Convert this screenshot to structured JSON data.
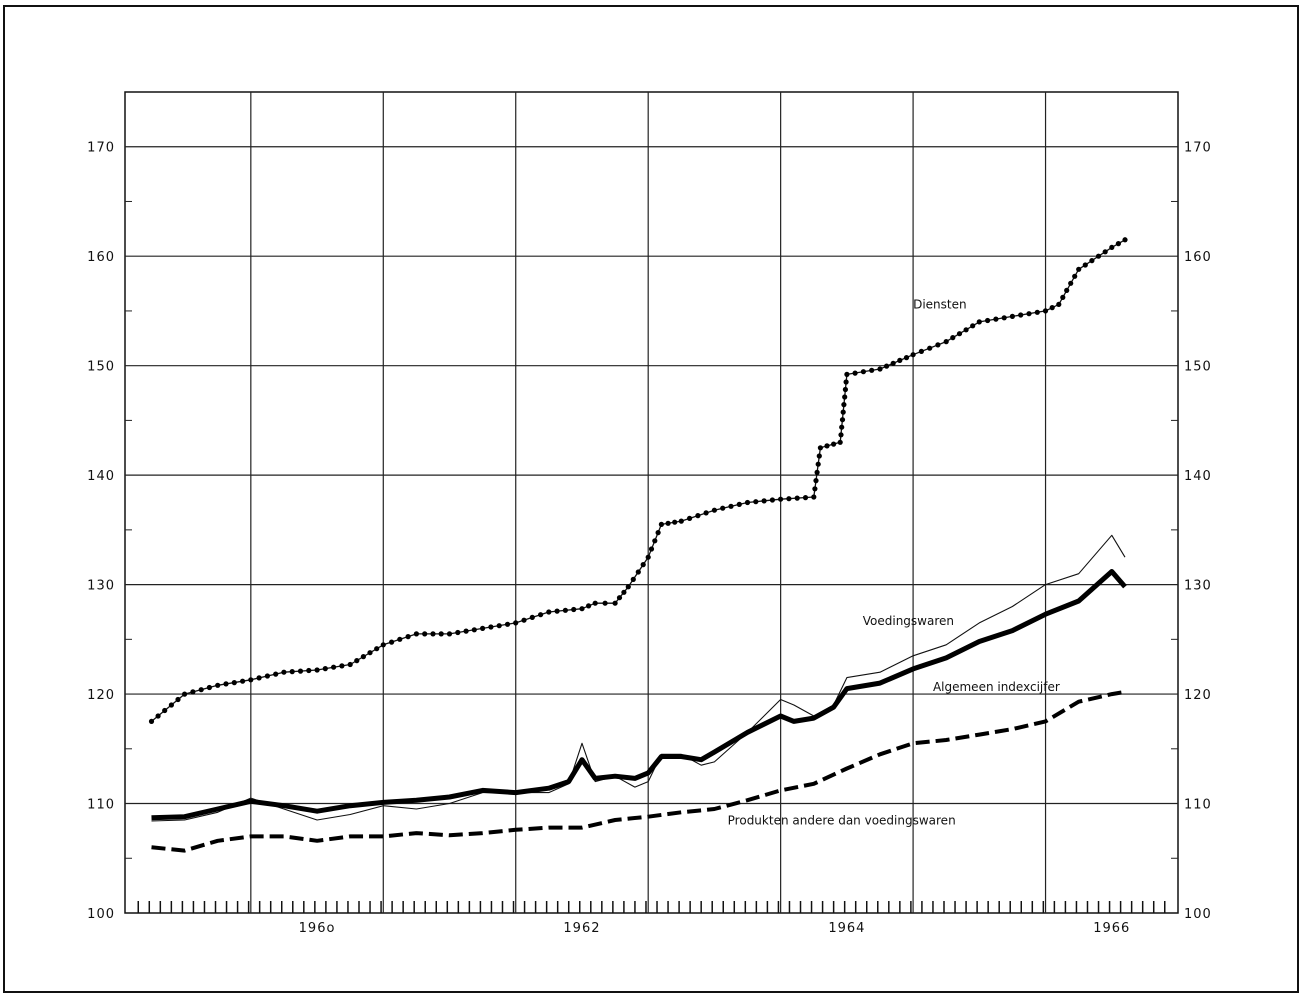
{
  "chart_data": {
    "type": "line",
    "title": "",
    "xlabel": "",
    "ylabel": "",
    "ylim": [
      100,
      175
    ],
    "xlim": [
      1958.55,
      1966.5
    ],
    "y_ticks": [
      100,
      110,
      120,
      130,
      140,
      150,
      160,
      170
    ],
    "y_tick_labels": [
      "100",
      "110",
      "120",
      "130",
      "140",
      "150",
      "160",
      "170"
    ],
    "x_ticks": [
      1960,
      1962,
      1964,
      1966
    ],
    "x_tick_labels": [
      "196ο",
      "1962",
      "1964",
      "1966"
    ],
    "grid": true,
    "series": [
      {
        "name": "Diensten",
        "style": "dotted",
        "x": [
          1958.75,
          1959.0,
          1959.25,
          1959.5,
          1959.75,
          1960.0,
          1960.25,
          1960.5,
          1960.75,
          1961.0,
          1961.25,
          1961.5,
          1961.75,
          1962.0,
          1962.1,
          1962.25,
          1962.35,
          1962.5,
          1962.6,
          1962.75,
          1963.0,
          1963.25,
          1963.5,
          1963.75,
          1963.8,
          1963.95,
          1964.0,
          1964.25,
          1964.5,
          1964.75,
          1965.0,
          1965.25,
          1965.5,
          1965.6,
          1965.75,
          1966.0,
          1966.1
        ],
        "values": [
          117.5,
          120.0,
          120.8,
          121.3,
          122.0,
          122.2,
          122.7,
          124.5,
          125.5,
          125.5,
          126.0,
          126.5,
          127.5,
          127.8,
          128.3,
          128.3,
          129.8,
          132.5,
          135.5,
          135.8,
          136.8,
          137.5,
          137.8,
          138.0,
          142.5,
          143.0,
          149.2,
          149.7,
          151.0,
          152.2,
          154.0,
          154.5,
          155.0,
          155.6,
          158.8,
          160.8,
          161.5
        ]
      },
      {
        "name": "Voedingswaren",
        "style": "thin",
        "x": [
          1958.75,
          1959.0,
          1959.25,
          1959.5,
          1959.75,
          1960.0,
          1960.25,
          1960.5,
          1960.75,
          1961.0,
          1961.25,
          1961.5,
          1961.75,
          1961.9,
          1962.0,
          1962.1,
          1962.25,
          1962.4,
          1962.5,
          1962.6,
          1962.75,
          1962.9,
          1963.0,
          1963.25,
          1963.5,
          1963.6,
          1963.75,
          1963.9,
          1964.0,
          1964.25,
          1964.5,
          1964.75,
          1965.0,
          1965.25,
          1965.5,
          1965.75,
          1966.0,
          1966.1
        ],
        "values": [
          108.4,
          108.5,
          109.2,
          110.5,
          109.5,
          108.5,
          109.0,
          109.8,
          109.5,
          110.0,
          111.0,
          111.0,
          111.0,
          111.8,
          115.5,
          112.0,
          112.5,
          111.5,
          112.0,
          114.5,
          114.5,
          113.5,
          113.8,
          116.5,
          119.5,
          119.0,
          118.0,
          119.0,
          121.5,
          122.0,
          123.5,
          124.5,
          126.5,
          128.0,
          130.0,
          131.0,
          134.5,
          132.5
        ]
      },
      {
        "name": "Algemeen indexcijfer",
        "style": "thick",
        "x": [
          1958.75,
          1959.0,
          1959.25,
          1959.5,
          1959.75,
          1960.0,
          1960.25,
          1960.5,
          1960.75,
          1961.0,
          1961.25,
          1961.5,
          1961.75,
          1961.9,
          1962.0,
          1962.1,
          1962.25,
          1962.4,
          1962.5,
          1962.6,
          1962.75,
          1962.9,
          1963.0,
          1963.25,
          1963.5,
          1963.6,
          1963.75,
          1963.9,
          1964.0,
          1964.25,
          1964.5,
          1964.75,
          1965.0,
          1965.25,
          1965.5,
          1965.75,
          1966.0,
          1966.1
        ],
        "values": [
          108.7,
          108.8,
          109.5,
          110.2,
          109.8,
          109.3,
          109.8,
          110.1,
          110.3,
          110.6,
          111.2,
          111.0,
          111.4,
          112.0,
          114.0,
          112.3,
          112.5,
          112.3,
          112.8,
          114.3,
          114.3,
          114.0,
          114.7,
          116.5,
          118.0,
          117.5,
          117.8,
          118.8,
          120.5,
          121.0,
          122.3,
          123.3,
          124.8,
          125.8,
          127.3,
          128.5,
          131.2,
          129.8
        ]
      },
      {
        "name": "Produkten andere dan voedingswaren",
        "style": "dashed",
        "x": [
          1958.75,
          1959.0,
          1959.25,
          1959.5,
          1959.75,
          1960.0,
          1960.25,
          1960.5,
          1960.75,
          1961.0,
          1961.25,
          1961.5,
          1961.75,
          1962.0,
          1962.25,
          1962.5,
          1962.75,
          1963.0,
          1963.25,
          1963.5,
          1963.75,
          1964.0,
          1964.25,
          1964.5,
          1964.75,
          1965.0,
          1965.25,
          1965.5,
          1965.75,
          1966.0,
          1966.1
        ],
        "values": [
          106.0,
          105.7,
          106.6,
          107.0,
          107.0,
          106.6,
          107.0,
          107.0,
          107.3,
          107.1,
          107.3,
          107.6,
          107.8,
          107.8,
          108.5,
          108.8,
          109.2,
          109.5,
          110.3,
          111.2,
          111.8,
          113.2,
          114.5,
          115.5,
          115.8,
          116.3,
          116.8,
          117.5,
          119.3,
          120.0,
          120.2
        ]
      }
    ],
    "annotations": [
      {
        "text": "Diensten",
        "x": 1964.5,
        "y": 155.2
      },
      {
        "text": "Voedingswaren",
        "x": 1964.12,
        "y": 126.3
      },
      {
        "text": "Algemeen indexcijfer",
        "x": 1964.65,
        "y": 120.3
      },
      {
        "text": "Produkten andere dan voedingswaren",
        "x": 1963.1,
        "y": 108.1
      }
    ]
  }
}
